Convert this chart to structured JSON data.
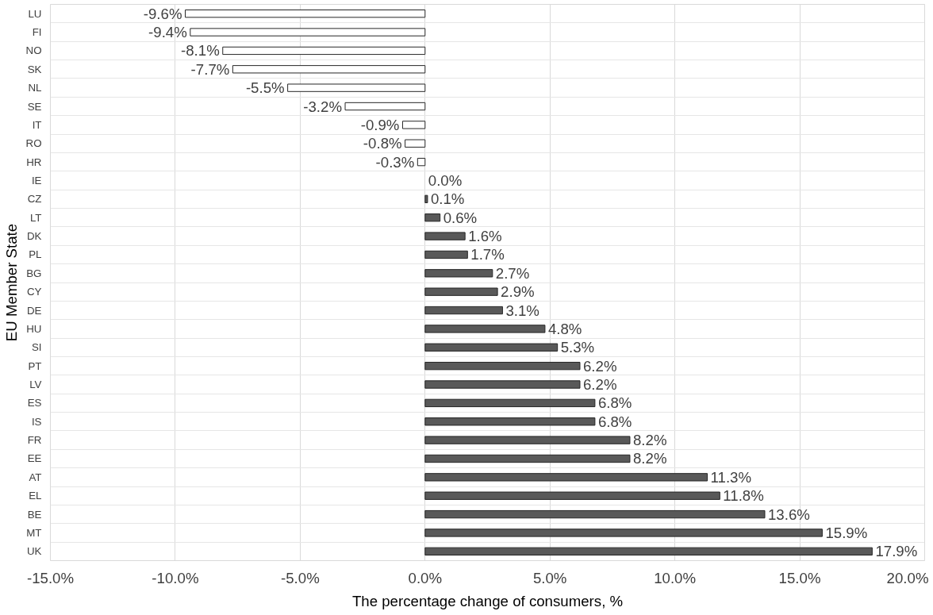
{
  "chart_data": {
    "type": "bar",
    "orientation": "horizontal",
    "xlabel": "The percentage change of consumers, %",
    "ylabel": "EU Member State",
    "categories": [
      "LU",
      "FI",
      "NO",
      "SK",
      "NL",
      "SE",
      "IT",
      "RO",
      "HR",
      "IE",
      "CZ",
      "LT",
      "DK",
      "PL",
      "BG",
      "CY",
      "DE",
      "HU",
      "SI",
      "PT",
      "LV",
      "ES",
      "IS",
      "FR",
      "EE",
      "AT",
      "EL",
      "BE",
      "MT",
      "UK"
    ],
    "values": [
      -9.6,
      -9.4,
      -8.1,
      -7.7,
      -5.5,
      -3.2,
      -0.9,
      -0.8,
      -0.3,
      0.0,
      0.1,
      0.6,
      1.6,
      1.7,
      2.7,
      2.9,
      3.1,
      4.8,
      5.3,
      6.2,
      6.2,
      6.8,
      6.8,
      8.2,
      8.2,
      11.3,
      11.8,
      13.6,
      15.9,
      17.9
    ],
    "colors": [
      "#ffffff",
      "#ffffff",
      "#ffffff",
      "#ffffff",
      "#ffffff",
      "#ffffff",
      "#ffffff",
      "#ffffff",
      "#ffffff",
      "#ffffff",
      "#595959",
      "#595959",
      "#595959",
      "#595959",
      "#595959",
      "#595959",
      "#595959",
      "#595959",
      "#595959",
      "#595959",
      "#595959",
      "#595959",
      "#595959",
      "#595959",
      "#595959",
      "#595959",
      "#595959",
      "#595959",
      "#595959",
      "#595959"
    ],
    "value_labels": [
      "-9.6%",
      "-9.4%",
      "-8.1%",
      "-7.7%",
      "-5.5%",
      "-3.2%",
      "-0.9%",
      "-0.8%",
      "-0.3%",
      "0.0%",
      "0.1%",
      "0.6%",
      "1.6%",
      "1.7%",
      "2.7%",
      "2.9%",
      "3.1%",
      "4.8%",
      "5.3%",
      "6.2%",
      "6.2%",
      "6.8%",
      "6.8%",
      "8.2%",
      "8.2%",
      "11.3%",
      "11.8%",
      "13.6%",
      "15.9%",
      "17.9%"
    ],
    "xlim": [
      -15,
      20
    ],
    "xticks": [
      {
        "value": -15,
        "label": "-15.0%"
      },
      {
        "value": -10,
        "label": "-10.0%"
      },
      {
        "value": -5,
        "label": "-5.0%"
      },
      {
        "value": 0,
        "label": "0.0%"
      },
      {
        "value": 5,
        "label": "5.0%"
      },
      {
        "value": 10,
        "label": "10.0%"
      },
      {
        "value": 15,
        "label": "15.0%"
      },
      {
        "value": 20,
        "label": "20.0%"
      }
    ],
    "grid": true
  }
}
